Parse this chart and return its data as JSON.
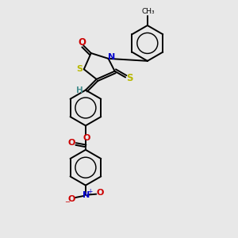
{
  "background_color": "#e8e8e8",
  "atom_colors": {
    "C": "#000000",
    "H": "#4a9090",
    "N": "#0000cc",
    "O": "#cc0000",
    "S": "#b8b800"
  },
  "figsize": [
    3.0,
    3.0
  ],
  "dpi": 100,
  "lw": 1.4
}
